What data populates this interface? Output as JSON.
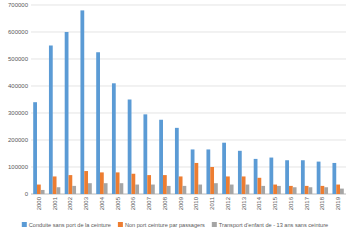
{
  "chart_data": {
    "type": "bar",
    "categories": [
      "2000",
      "2001",
      "2002",
      "2003",
      "2004",
      "2005",
      "2006",
      "2007",
      "2008",
      "2009",
      "2010",
      "2011",
      "2012",
      "2013",
      "2014",
      "2015",
      "2016",
      "2017",
      "2018",
      "2019"
    ],
    "series": [
      {
        "name": "Conduite sans port de la ceinture",
        "color": "#5b9bd5",
        "values": [
          340000,
          550000,
          600000,
          680000,
          525000,
          410000,
          350000,
          295000,
          275000,
          245000,
          165000,
          165000,
          190000,
          160000,
          130000,
          135000,
          125000,
          125000,
          120000,
          115000
        ]
      },
      {
        "name": "Non port ceinture par passagers",
        "color": "#ed7d31",
        "values": [
          35000,
          65000,
          70000,
          85000,
          80000,
          80000,
          75000,
          70000,
          70000,
          65000,
          115000,
          100000,
          65000,
          65000,
          60000,
          35000,
          30000,
          30000,
          30000,
          35000
        ]
      },
      {
        "name": "Transport d'enfant de - 13 ans sans ceinture",
        "color": "#a5a5a5",
        "values": [
          15000,
          25000,
          30000,
          40000,
          40000,
          40000,
          35000,
          35000,
          30000,
          30000,
          35000,
          40000,
          35000,
          35000,
          30000,
          30000,
          25000,
          25000,
          25000,
          20000
        ]
      }
    ],
    "ylim": [
      0,
      700000
    ],
    "yticks": [
      0,
      100000,
      200000,
      300000,
      400000,
      500000,
      600000,
      700000
    ],
    "grid": true,
    "legend": "bottom"
  }
}
